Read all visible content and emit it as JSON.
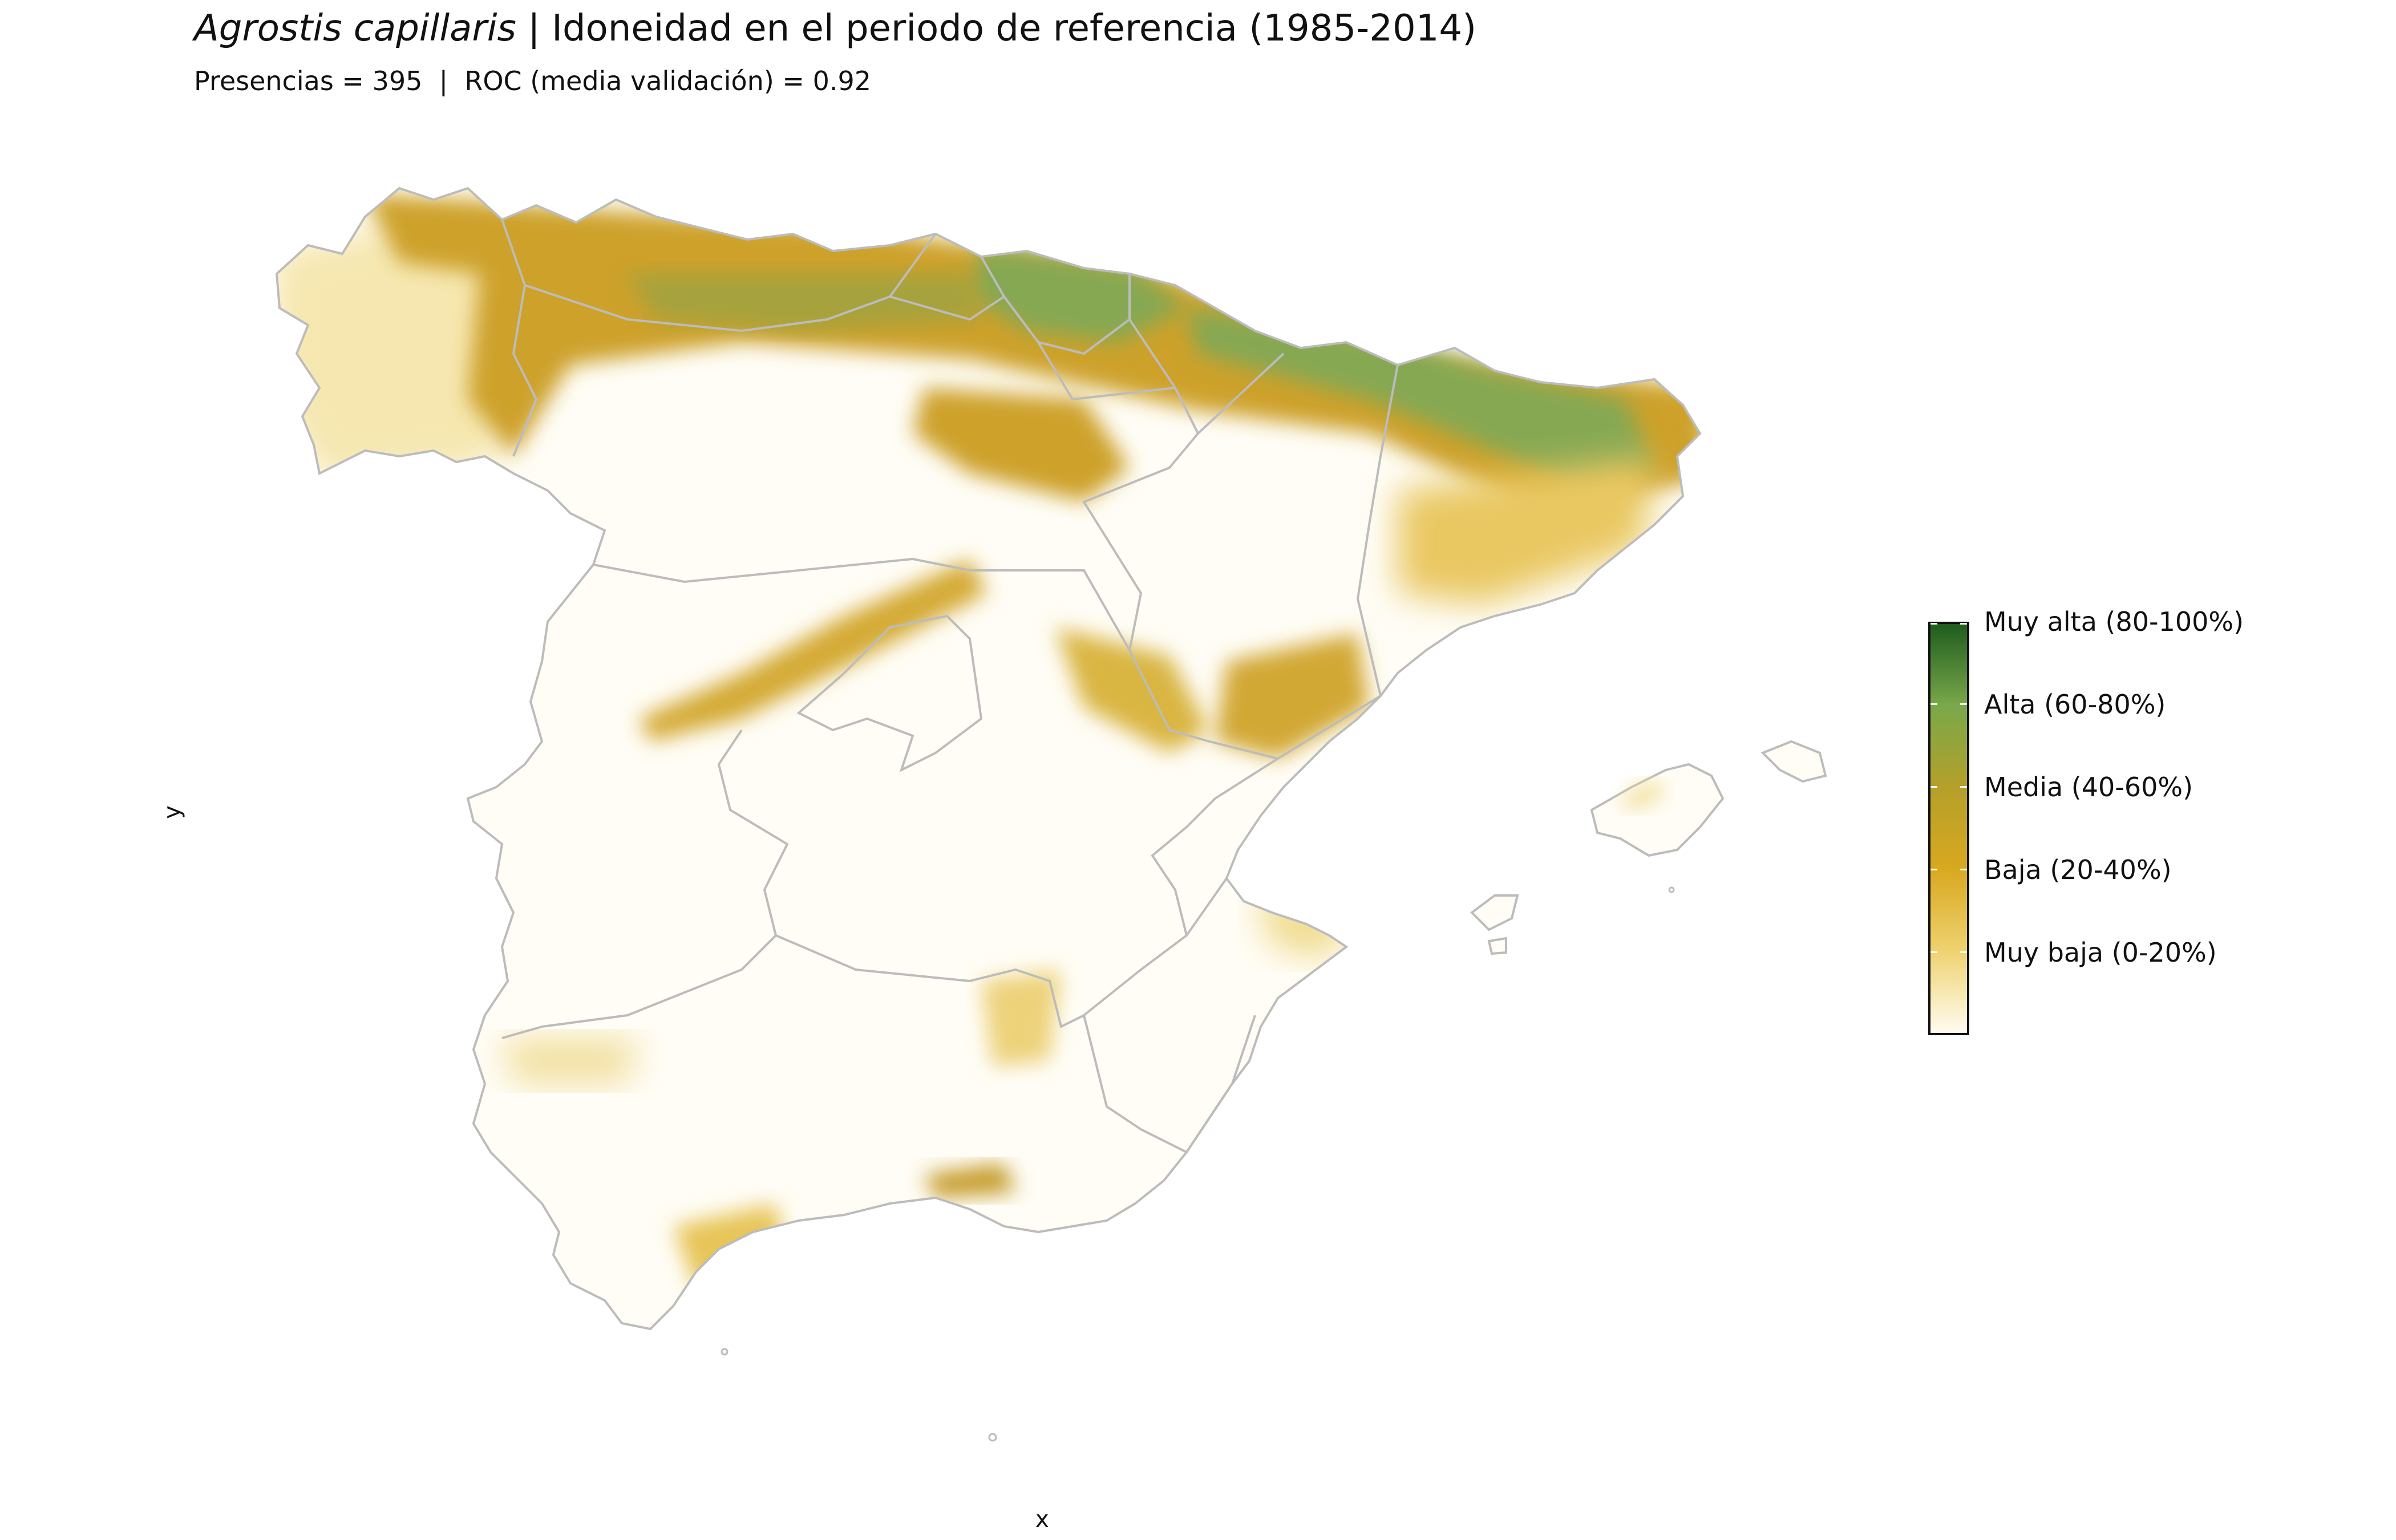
{
  "title": {
    "species": "Agrostis capillaris",
    "rest": " | Idoneidad en el periodo de referencia (1985-2014)"
  },
  "subtitle": "Presencias = 395  |  ROC (media validación) = 0.92",
  "axes": {
    "x_label": "x",
    "y_label": "y"
  },
  "legend": {
    "items": [
      {
        "label": "Muy alta (80-100%)",
        "fraction": 1.0
      },
      {
        "label": "Alta (60-80%)",
        "fraction": 0.8
      },
      {
        "label": "Media (40-60%)",
        "fraction": 0.6
      },
      {
        "label": "Baja (20-40%)",
        "fraction": 0.4
      },
      {
        "label": "Muy baja (0-20%)",
        "fraction": 0.2
      }
    ],
    "colors": {
      "top": "#1e5c1e",
      "high": "#7aa84a",
      "mid": "#b5a02a",
      "low": "#d8a820",
      "verylow": "#efd270",
      "bottom": "#fffcf0"
    }
  },
  "map_colors": {
    "background": "#fffdf6",
    "boundary": "#bcbcbc",
    "pale": "#f6e7b0",
    "yellow": "#e2c050",
    "ochre": "#cda12a",
    "olive": "#a6a23c",
    "green": "#86a852"
  }
}
